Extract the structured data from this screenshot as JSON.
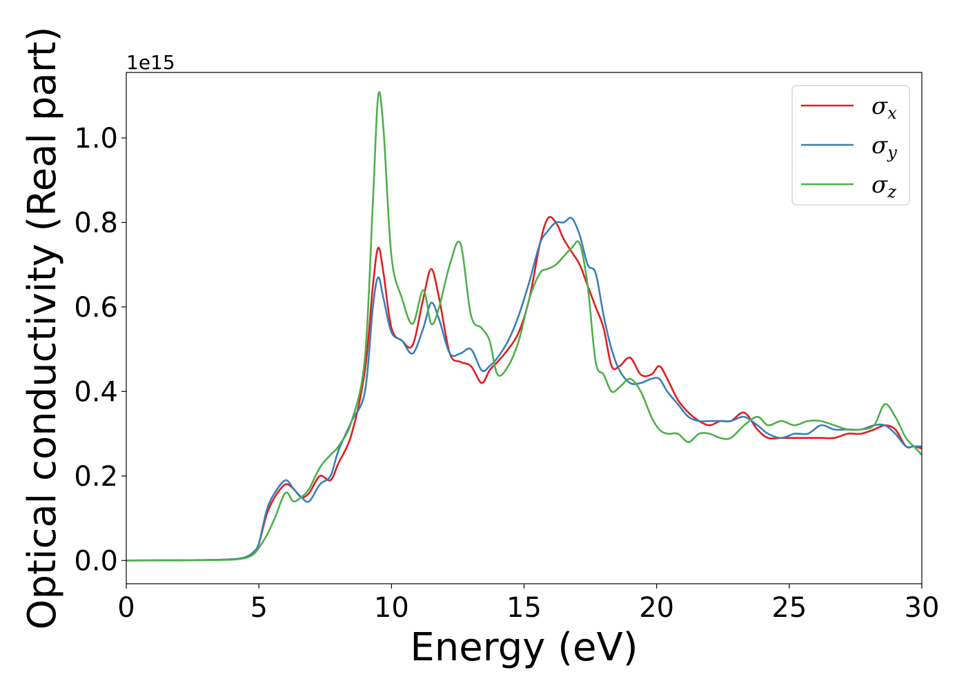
{
  "chart_data": {
    "type": "line",
    "title": "",
    "xlabel": "Energy (eV)",
    "ylabel": "Optical conductivity (Real part)",
    "y_offset_label": "1e15",
    "xlim": [
      0,
      30
    ],
    "ylim": [
      -0.055,
      1.155
    ],
    "xticks": [
      0,
      5,
      10,
      15,
      20,
      25,
      30
    ],
    "yticks": [
      0.0,
      0.2,
      0.4,
      0.6,
      0.8,
      1.0
    ],
    "yticklabels": [
      "0.0",
      "0.2",
      "0.4",
      "0.6",
      "0.8",
      "1.0"
    ],
    "grid": false,
    "legend_position": "top-right",
    "series": [
      {
        "name": "σx",
        "legend_symbol": "σ",
        "legend_subscript": "x",
        "color": "#e41a1c",
        "x": [
          0,
          3,
          4,
          4.5,
          4.8,
          5.0,
          5.3,
          5.6,
          6.0,
          6.3,
          6.6,
          6.9,
          7.3,
          7.7,
          8.0,
          8.5,
          9.0,
          9.3,
          9.5,
          9.7,
          10.0,
          10.4,
          10.8,
          11.2,
          11.5,
          11.8,
          12.2,
          12.6,
          13.0,
          13.4,
          13.7,
          14.0,
          14.4,
          14.8,
          15.2,
          15.6,
          15.9,
          16.2,
          16.5,
          16.8,
          17.1,
          17.4,
          17.7,
          18.0,
          18.3,
          18.6,
          19.0,
          19.4,
          19.8,
          20.1,
          20.4,
          20.8,
          21.2,
          21.6,
          22.0,
          22.4,
          22.8,
          23.3,
          23.8,
          24.2,
          24.7,
          25.2,
          25.7,
          26.2,
          26.7,
          27.2,
          27.7,
          28.2,
          28.6,
          29.0,
          29.4,
          29.7,
          30.0
        ],
        "y": [
          0,
          0.001,
          0.003,
          0.008,
          0.02,
          0.04,
          0.11,
          0.15,
          0.18,
          0.17,
          0.15,
          0.16,
          0.2,
          0.19,
          0.23,
          0.3,
          0.45,
          0.65,
          0.74,
          0.68,
          0.55,
          0.52,
          0.51,
          0.62,
          0.69,
          0.62,
          0.49,
          0.47,
          0.46,
          0.42,
          0.45,
          0.47,
          0.5,
          0.54,
          0.62,
          0.75,
          0.81,
          0.8,
          0.76,
          0.73,
          0.7,
          0.65,
          0.6,
          0.55,
          0.46,
          0.46,
          0.48,
          0.44,
          0.44,
          0.46,
          0.43,
          0.38,
          0.35,
          0.33,
          0.32,
          0.33,
          0.33,
          0.35,
          0.31,
          0.29,
          0.29,
          0.29,
          0.29,
          0.29,
          0.29,
          0.3,
          0.3,
          0.31,
          0.32,
          0.31,
          0.27,
          0.27,
          0.265
        ]
      },
      {
        "name": "σy",
        "legend_symbol": "σ",
        "legend_subscript": "y",
        "color": "#377eb8",
        "x": [
          0,
          3,
          4,
          4.5,
          4.8,
          5.0,
          5.3,
          5.6,
          6.0,
          6.3,
          6.6,
          6.9,
          7.3,
          7.7,
          8.0,
          8.5,
          9.0,
          9.3,
          9.5,
          9.7,
          10.0,
          10.4,
          10.8,
          11.2,
          11.5,
          11.8,
          12.2,
          12.6,
          13.0,
          13.4,
          13.7,
          14.0,
          14.4,
          14.8,
          15.2,
          15.6,
          15.9,
          16.2,
          16.5,
          16.8,
          17.1,
          17.4,
          17.7,
          18.0,
          18.3,
          18.6,
          19.0,
          19.4,
          19.8,
          20.1,
          20.4,
          20.8,
          21.2,
          21.6,
          22.0,
          22.4,
          22.8,
          23.3,
          23.8,
          24.2,
          24.7,
          25.2,
          25.7,
          26.2,
          26.7,
          27.2,
          27.7,
          28.2,
          28.6,
          29.0,
          29.4,
          29.7,
          30.0
        ],
        "y": [
          0,
          0.001,
          0.003,
          0.008,
          0.02,
          0.04,
          0.12,
          0.16,
          0.19,
          0.17,
          0.15,
          0.14,
          0.18,
          0.2,
          0.26,
          0.33,
          0.4,
          0.6,
          0.67,
          0.62,
          0.54,
          0.52,
          0.49,
          0.55,
          0.61,
          0.57,
          0.49,
          0.49,
          0.5,
          0.45,
          0.46,
          0.48,
          0.52,
          0.58,
          0.66,
          0.75,
          0.78,
          0.8,
          0.8,
          0.81,
          0.77,
          0.7,
          0.68,
          0.58,
          0.5,
          0.45,
          0.42,
          0.42,
          0.43,
          0.43,
          0.4,
          0.37,
          0.34,
          0.33,
          0.33,
          0.33,
          0.33,
          0.34,
          0.32,
          0.3,
          0.29,
          0.3,
          0.3,
          0.32,
          0.31,
          0.31,
          0.31,
          0.32,
          0.32,
          0.3,
          0.27,
          0.27,
          0.27
        ]
      },
      {
        "name": "σz",
        "legend_symbol": "σ",
        "legend_subscript": "z",
        "color": "#4daf4a",
        "x": [
          0,
          3,
          4,
          4.5,
          4.8,
          5.0,
          5.3,
          5.6,
          6.0,
          6.3,
          6.6,
          6.9,
          7.3,
          7.7,
          8.0,
          8.5,
          9.0,
          9.3,
          9.5,
          9.7,
          10.0,
          10.4,
          10.8,
          11.2,
          11.5,
          11.8,
          12.2,
          12.6,
          13.0,
          13.4,
          13.7,
          14.0,
          14.4,
          14.8,
          15.2,
          15.6,
          15.9,
          16.2,
          16.5,
          16.8,
          17.1,
          17.4,
          17.7,
          18.0,
          18.3,
          18.6,
          19.0,
          19.4,
          19.8,
          20.1,
          20.4,
          20.8,
          21.2,
          21.6,
          22.0,
          22.4,
          22.8,
          23.3,
          23.8,
          24.2,
          24.7,
          25.2,
          25.7,
          26.2,
          26.7,
          27.2,
          27.7,
          28.2,
          28.6,
          29.0,
          29.4,
          29.7,
          30.0
        ],
        "y": [
          0,
          0.001,
          0.002,
          0.006,
          0.015,
          0.03,
          0.06,
          0.1,
          0.16,
          0.14,
          0.15,
          0.17,
          0.22,
          0.25,
          0.27,
          0.33,
          0.48,
          0.85,
          1.1,
          1.02,
          0.72,
          0.62,
          0.56,
          0.64,
          0.56,
          0.6,
          0.7,
          0.75,
          0.58,
          0.55,
          0.52,
          0.44,
          0.46,
          0.52,
          0.62,
          0.68,
          0.69,
          0.7,
          0.72,
          0.74,
          0.75,
          0.65,
          0.47,
          0.44,
          0.4,
          0.41,
          0.43,
          0.4,
          0.34,
          0.31,
          0.3,
          0.3,
          0.28,
          0.3,
          0.3,
          0.29,
          0.29,
          0.32,
          0.34,
          0.32,
          0.33,
          0.32,
          0.33,
          0.33,
          0.32,
          0.31,
          0.31,
          0.32,
          0.37,
          0.34,
          0.29,
          0.27,
          0.25
        ]
      }
    ]
  }
}
